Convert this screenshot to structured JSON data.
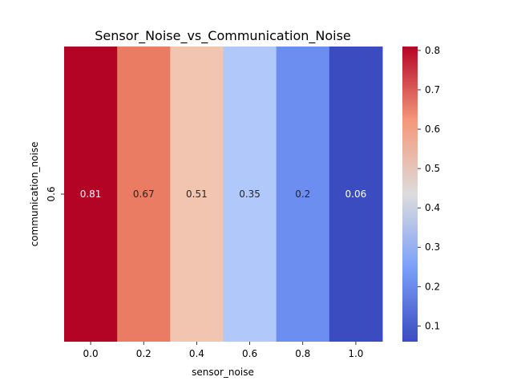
{
  "chart_data": {
    "type": "heatmap",
    "title": "Sensor_Noise_vs_Communication_Noise",
    "xlabel": "sensor_noise",
    "ylabel": "communication_noise",
    "x_categories": [
      "0.0",
      "0.2",
      "0.4",
      "0.6",
      "0.8",
      "1.0"
    ],
    "y_categories": [
      "0.6"
    ],
    "values": [
      [
        0.81,
        0.67,
        0.51,
        0.35,
        0.2,
        0.06
      ]
    ],
    "cell_labels": [
      [
        "0.81",
        "0.67",
        "0.51",
        "0.35",
        "0.2",
        "0.06"
      ]
    ],
    "colormap": "coolwarm",
    "colorbar": {
      "range": [
        0.06,
        0.81
      ],
      "ticks": [
        "0.1",
        "0.2",
        "0.3",
        "0.4",
        "0.5",
        "0.6",
        "0.7",
        "0.8"
      ]
    }
  }
}
